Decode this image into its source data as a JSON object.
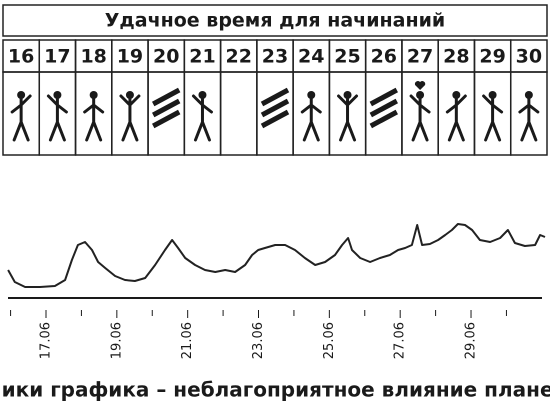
{
  "header": {
    "title": "Удачное время для начинаний"
  },
  "days": [
    "16",
    "17",
    "18",
    "19",
    "20",
    "21",
    "22",
    "23",
    "24",
    "25",
    "26",
    "27",
    "28",
    "29",
    "30"
  ],
  "chart_data": {
    "type": "line",
    "color": "#222222",
    "x": [
      15.93,
      16.12,
      16.41,
      16.83,
      17.25,
      17.54,
      17.73,
      17.9,
      18.1,
      18.3,
      18.47,
      18.67,
      18.95,
      19.23,
      19.51,
      19.8,
      20.08,
      20.36,
      20.56,
      20.73,
      20.93,
      21.21,
      21.49,
      21.78,
      22.06,
      22.34,
      22.62,
      22.82,
      22.99,
      23.18,
      23.47,
      23.75,
      24.03,
      24.31,
      24.6,
      24.88,
      25.16,
      25.36,
      25.53,
      25.64,
      25.87,
      26.15,
      26.43,
      26.71,
      26.94,
      27.14,
      27.33,
      27.48,
      27.62,
      27.84,
      28.07,
      28.27,
      28.46,
      28.63,
      28.83,
      29.03,
      29.25,
      29.54,
      29.82,
      30.04,
      30.24,
      30.52,
      30.81,
      30.95,
      31.09
    ],
    "values": [
      30,
      18,
      13,
      13,
      14,
      20,
      40,
      55,
      58,
      50,
      38,
      32,
      24,
      20,
      19,
      22,
      35,
      50,
      60,
      52,
      42,
      35,
      30,
      28,
      30,
      28,
      35,
      45,
      50,
      52,
      55,
      55,
      50,
      42,
      35,
      38,
      45,
      55,
      62,
      50,
      42,
      38,
      42,
      45,
      50,
      52,
      55,
      75,
      55,
      56,
      60,
      65,
      70,
      76,
      75,
      70,
      60,
      58,
      62,
      70,
      57,
      54,
      55,
      65,
      63
    ],
    "xlim": [
      15.8,
      31.1
    ],
    "ylim": [
      0,
      100
    ],
    "xticks": [
      {
        "value": 17,
        "label": "17.06"
      },
      {
        "value": 19,
        "label": "19.06"
      },
      {
        "value": 21,
        "label": "21.06"
      },
      {
        "value": 23,
        "label": "23.06"
      },
      {
        "value": 25,
        "label": "25.06"
      },
      {
        "value": 27,
        "label": "27.06"
      },
      {
        "value": 29,
        "label": "29.06"
      }
    ],
    "xminorticks": [
      16,
      18,
      20,
      22,
      24,
      26,
      28,
      30
    ],
    "caption": "Пики графика – неблагоприятное влияние планет"
  }
}
